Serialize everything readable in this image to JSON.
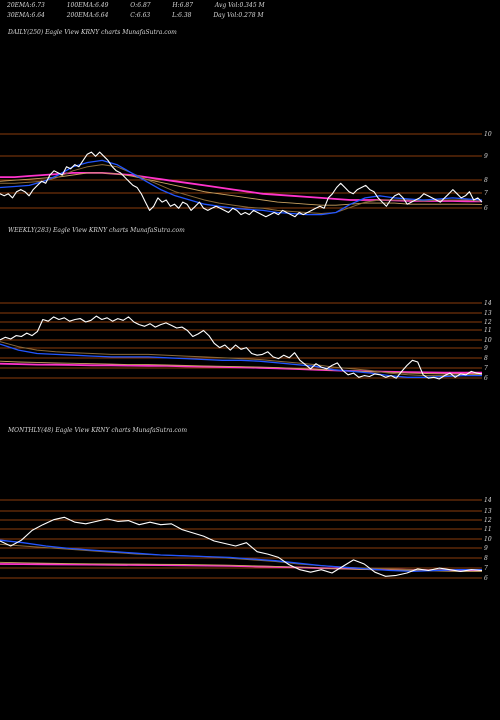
{
  "header": {
    "row1": [
      {
        "label": "20EMA:",
        "value": "6.73"
      },
      {
        "label": "100EMA:",
        "value": "6.49"
      },
      {
        "label": "O:",
        "value": "6.87"
      },
      {
        "label": "H:",
        "value": "6.87"
      },
      {
        "label": "Avg Vol:",
        "value": "0.345 M"
      }
    ],
    "row2": [
      {
        "label": "30EMA:",
        "value": "6.64"
      },
      {
        "label": "200EMA:",
        "value": "6.64"
      },
      {
        "label": "C:",
        "value": "6.63"
      },
      {
        "label": "L:",
        "value": "6.38"
      },
      {
        "label": "Day Vol:",
        "value": "0.278 M"
      }
    ]
  },
  "colors": {
    "background": "#000000",
    "price": "#ffffff",
    "ema_blue": "#2255ff",
    "ema_magenta": "#ff33cc",
    "ema_tan": "#c8a060",
    "ema_brown": "#8a6a3a",
    "gridline": "#b8520f"
  },
  "chart_data": [
    {
      "type": "line",
      "title": "DAILY(250) Eagle  View  KRNY charts MunafaSutra.com",
      "y_ticks": [
        "10",
        "9",
        "8",
        "7",
        "6"
      ],
      "ylim": [
        5.5,
        10.3
      ],
      "series": [
        {
          "role": "price",
          "values": [
            7.0,
            6.9,
            7.0,
            6.8,
            7.1,
            7.2,
            7.1,
            6.9,
            7.2,
            7.4,
            7.6,
            7.5,
            7.9,
            8.1,
            8.0,
            7.9,
            8.3,
            8.2,
            8.4,
            8.3,
            8.6,
            8.9,
            9.0,
            8.8,
            9.0,
            8.8,
            8.6,
            8.3,
            8.1,
            8.0,
            7.8,
            7.6,
            7.4,
            7.3,
            7.0,
            6.6,
            6.2,
            6.4,
            6.8,
            6.6,
            6.7,
            6.4,
            6.5,
            6.3,
            6.6,
            6.5,
            6.2,
            6.4,
            6.6,
            6.3,
            6.2,
            6.3,
            6.4,
            6.3,
            6.2,
            6.1,
            6.3,
            6.2,
            6.0,
            6.1,
            6.0,
            6.2,
            6.1,
            6.0,
            5.9,
            6.0,
            6.1,
            6.0,
            6.2,
            6.1,
            6.0,
            5.9,
            6.1,
            6.0,
            6.1,
            6.2,
            6.3,
            6.4,
            6.3,
            6.8,
            7.0,
            7.3,
            7.5,
            7.3,
            7.1,
            7.0,
            7.2,
            7.3,
            7.4,
            7.2,
            7.1,
            6.8,
            6.6,
            6.4,
            6.7,
            6.9,
            7.0,
            6.8,
            6.5,
            6.6,
            6.7,
            6.8,
            7.0,
            6.9,
            6.8,
            6.7,
            6.6,
            6.8,
            7.0,
            7.2,
            7.0,
            6.8,
            6.9,
            7.1,
            6.7,
            6.8,
            6.6
          ]
        },
        {
          "role": "ema20",
          "values": [
            7.3,
            7.35,
            7.4,
            7.6,
            7.9,
            8.3,
            8.5,
            8.6,
            8.4,
            8.0,
            7.6,
            7.2,
            6.9,
            6.7,
            6.5,
            6.4,
            6.3,
            6.25,
            6.2,
            6.1,
            6.05,
            6.0,
            6.0,
            6.1,
            6.5,
            6.8,
            6.9,
            6.8,
            6.75,
            6.7,
            6.75,
            6.8,
            6.75,
            6.7
          ]
        },
        {
          "role": "ema30",
          "values": [
            7.5,
            7.5,
            7.55,
            7.6,
            7.8,
            8.1,
            8.3,
            8.4,
            8.3,
            8.0,
            7.7,
            7.4,
            7.1,
            6.9,
            6.7,
            6.55,
            6.45,
            6.35,
            6.3,
            6.2,
            6.15,
            6.1,
            6.05,
            6.1,
            6.35,
            6.6,
            6.7,
            6.7,
            6.7,
            6.65,
            6.7,
            6.7,
            6.7,
            6.64
          ]
        },
        {
          "role": "ema100",
          "values": [
            7.6,
            7.65,
            7.7,
            7.75,
            7.8,
            7.9,
            8.0,
            8.0,
            7.95,
            7.85,
            7.7,
            7.55,
            7.4,
            7.25,
            7.1,
            7.0,
            6.9,
            6.8,
            6.7,
            6.6,
            6.55,
            6.5,
            6.45,
            6.45,
            6.5,
            6.55,
            6.55,
            6.55,
            6.5,
            6.5,
            6.5,
            6.5,
            6.5,
            6.49
          ]
        },
        {
          "role": "ema200",
          "values": [
            7.8,
            7.8,
            7.85,
            7.9,
            7.95,
            8.0,
            8.0,
            8.0,
            7.95,
            7.9,
            7.8,
            7.7,
            7.6,
            7.5,
            7.4,
            7.3,
            7.2,
            7.1,
            7.0,
            6.95,
            6.9,
            6.85,
            6.8,
            6.75,
            6.7,
            6.7,
            6.7,
            6.68,
            6.66,
            6.65,
            6.65,
            6.65,
            6.64,
            6.64
          ]
        }
      ]
    },
    {
      "type": "line",
      "title": "WEEKLY(283) Eagle  View  KRNY charts MunafaSutra.com",
      "y_ticks": [
        "14",
        "13",
        "12",
        "11",
        "10",
        "9",
        "8",
        "7",
        "6"
      ],
      "ylim": [
        5.2,
        14.6
      ],
      "series": [
        {
          "role": "price",
          "values": [
            10.5,
            10.8,
            10.6,
            11.0,
            10.9,
            11.3,
            11.0,
            11.5,
            12.9,
            12.7,
            13.2,
            12.9,
            13.1,
            12.7,
            12.9,
            13.0,
            12.6,
            12.8,
            13.3,
            12.9,
            13.1,
            12.7,
            13.0,
            12.8,
            13.2,
            12.6,
            12.3,
            12.1,
            12.4,
            12.0,
            12.3,
            12.5,
            12.2,
            11.9,
            12.0,
            11.6,
            10.9,
            11.2,
            11.6,
            11.0,
            10.1,
            9.6,
            9.9,
            9.3,
            9.9,
            9.4,
            9.6,
            8.9,
            8.7,
            8.8,
            9.1,
            8.5,
            8.3,
            8.7,
            8.4,
            9.0,
            8.1,
            7.6,
            7.1,
            7.7,
            7.3,
            7.1,
            7.5,
            7.8,
            6.9,
            6.4,
            6.6,
            6.1,
            6.3,
            6.2,
            6.5,
            6.4,
            6.1,
            6.3,
            6.0,
            6.8,
            7.5,
            8.1,
            7.9,
            6.4,
            6.0,
            6.1,
            5.9,
            6.3,
            6.6,
            6.1,
            6.5,
            6.4,
            6.8,
            6.6,
            6.5
          ]
        },
        {
          "role": "ema20",
          "values": [
            10.0,
            9.3,
            8.9,
            8.8,
            8.7,
            8.6,
            8.5,
            8.5,
            8.5,
            8.4,
            8.3,
            8.2,
            8.1,
            8.1,
            8.0,
            7.8,
            7.6,
            7.4,
            7.0,
            6.8,
            6.6,
            6.3,
            6.1,
            6.1,
            6.2,
            6.3,
            6.3
          ]
        },
        {
          "role": "ema30",
          "values": [
            10.3,
            9.7,
            9.3,
            9.1,
            9.0,
            8.9,
            8.8,
            8.8,
            8.8,
            8.7,
            8.6,
            8.5,
            8.4,
            8.3,
            8.2,
            8.0,
            7.8,
            7.6,
            7.3,
            7.1,
            6.9,
            6.6,
            6.4,
            6.3,
            6.3,
            6.35,
            6.4
          ]
        },
        {
          "role": "ema100",
          "values": [
            8.0,
            7.9,
            7.85,
            7.8,
            7.75,
            7.7,
            7.65,
            7.6,
            7.6,
            7.55,
            7.5,
            7.45,
            7.4,
            7.35,
            7.3,
            7.25,
            7.15,
            7.05,
            6.95,
            6.85,
            6.75,
            6.7,
            6.6,
            6.55,
            6.5,
            6.5,
            6.49
          ]
        },
        {
          "role": "ema200",
          "values": [
            7.7,
            7.65,
            7.6,
            7.58,
            7.55,
            7.52,
            7.5,
            7.48,
            7.46,
            7.44,
            7.4,
            7.36,
            7.32,
            7.28,
            7.22,
            7.16,
            7.08,
            7.0,
            6.92,
            6.85,
            6.8,
            6.75,
            6.7,
            6.68,
            6.66,
            6.65,
            6.64
          ]
        }
      ]
    },
    {
      "type": "line",
      "title": "MONTHLY(48) Eagle  View  KRNY charts MunafaSutra.com",
      "y_ticks": [
        "14",
        "13",
        "12",
        "11",
        "10",
        "9",
        "8",
        "7",
        "6"
      ],
      "ylim": [
        5.2,
        14.6
      ],
      "series": [
        {
          "role": "price",
          "values": [
            10.2,
            9.6,
            10.3,
            11.5,
            12.2,
            12.8,
            13.1,
            12.5,
            12.3,
            12.6,
            12.9,
            12.6,
            12.7,
            12.2,
            12.5,
            12.2,
            12.3,
            11.6,
            11.2,
            10.8,
            10.2,
            9.9,
            9.6,
            10.0,
            8.9,
            8.6,
            8.2,
            7.3,
            6.7,
            6.4,
            6.7,
            6.3,
            7.1,
            7.9,
            7.4,
            6.4,
            5.9,
            6.0,
            6.3,
            6.8,
            6.6,
            6.9,
            6.7,
            6.5,
            6.7,
            6.6
          ]
        },
        {
          "role": "ema20",
          "values": [
            10.3,
            10.0,
            9.6,
            9.3,
            9.1,
            8.9,
            8.7,
            8.5,
            8.4,
            8.3,
            8.2,
            8.0,
            7.8,
            7.5,
            7.2,
            7.0,
            6.8,
            6.6,
            6.5,
            6.6,
            6.7,
            6.7
          ]
        },
        {
          "role": "ema30",
          "values": [
            9.8,
            9.6,
            9.4,
            9.2,
            9.0,
            8.8,
            8.6,
            8.5,
            8.4,
            8.3,
            8.1,
            7.9,
            7.7,
            7.4,
            7.2,
            7.0,
            6.9,
            6.8,
            6.7,
            6.7,
            6.7,
            6.64
          ]
        },
        {
          "role": "ema100",
          "values": [
            7.6,
            7.55,
            7.5,
            7.45,
            7.42,
            7.4,
            7.38,
            7.36,
            7.34,
            7.3,
            7.25,
            7.18,
            7.1,
            7.0,
            6.9,
            6.8,
            6.72,
            6.65,
            6.6,
            6.55,
            6.5,
            6.49
          ]
        },
        {
          "role": "ema200",
          "values": [
            7.4,
            7.38,
            7.36,
            7.34,
            7.32,
            7.3,
            7.28,
            7.26,
            7.24,
            7.2,
            7.16,
            7.1,
            7.04,
            6.98,
            6.9,
            6.84,
            6.78,
            6.72,
            6.68,
            6.66,
            6.65,
            6.64
          ]
        }
      ]
    }
  ]
}
